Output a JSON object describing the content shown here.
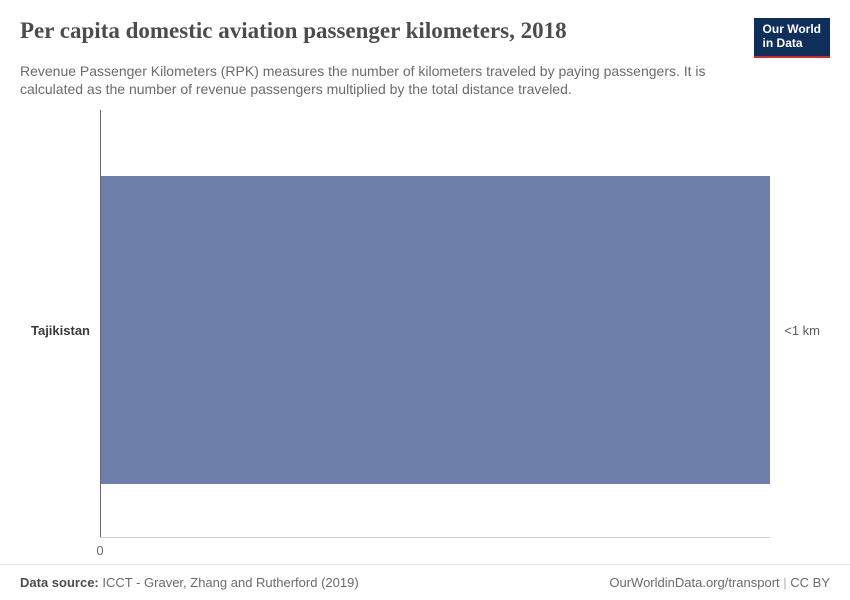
{
  "header": {
    "title": "Per capita domestic aviation passenger kilometers, 2018",
    "subtitle": "Revenue Passenger Kilometers (RPK) measures the number of kilometers traveled by paying passengers. It is calculated as the number of revenue passengers multiplied by the total distance traveled.",
    "logo_line1": "Our World",
    "logo_line2": "in Data"
  },
  "chart": {
    "type": "bar",
    "orientation": "horizontal",
    "categories": [
      "Tajikistan"
    ],
    "values": [
      0.7
    ],
    "value_labels": [
      "<1 km"
    ],
    "bar_color": "#6d7fa8",
    "background_color": "#ffffff",
    "axis_color": "#6b6b6b",
    "gridline_color": "#cfcfcf",
    "x_origin_label": "0",
    "bar_fraction_of_width": 1.0,
    "bar_top_pct": 15,
    "bar_height_pct": 70,
    "label_fontsize": 13,
    "label_fontweight": 600,
    "value_fontsize": 13,
    "title_fontsize": 23,
    "subtitle_fontsize": 14
  },
  "footer": {
    "source_label": "Data source:",
    "source_text": "ICCT - Graver, Zhang and Rutherford (2019)",
    "link": "OurWorldinData.org/transport",
    "license": "CC BY"
  },
  "colors": {
    "title_text": "#4c4c4c",
    "body_text": "#6b6b6b",
    "logo_bg": "#0f2e5a",
    "logo_underline": "#c0322f"
  }
}
